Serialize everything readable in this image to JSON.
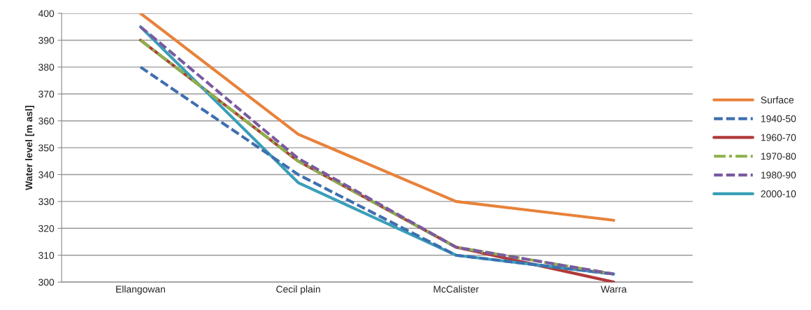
{
  "chart_data": {
    "type": "line",
    "ylabel": "Water level [m asl]",
    "categories": [
      "Ellangowan",
      "Cecil plain",
      "McCalister",
      "Warra"
    ],
    "series": [
      {
        "name": "Surface",
        "color": "#e8823a",
        "values": [
          400,
          355,
          330,
          323
        ],
        "line_style": "solid"
      },
      {
        "name": "1940-50",
        "color": "#3e6fb0",
        "values": [
          380,
          340,
          310,
          303
        ],
        "line_style": "dashed"
      },
      {
        "name": "1960-70",
        "color": "#b03a3a",
        "values": [
          390,
          345,
          313,
          300
        ],
        "line_style": "solid"
      },
      {
        "name": "1970-80",
        "color": "#8db04a",
        "values": [
          390,
          345,
          313,
          303
        ],
        "line_style": "dotted"
      },
      {
        "name": "1980-90",
        "color": "#7a5aa0",
        "values": [
          395,
          346,
          313,
          303
        ],
        "line_style": "dashed"
      },
      {
        "name": "2000-10",
        "color": "#3a9fb8",
        "values": [
          395,
          337,
          310,
          303
        ],
        "line_style": "solid"
      }
    ],
    "ylim": [
      300,
      400
    ],
    "yticks": [
      300,
      310,
      320,
      330,
      340,
      350,
      360,
      370,
      380,
      390,
      400
    ],
    "grid": "y",
    "legend": "right",
    "marker": "none"
  }
}
